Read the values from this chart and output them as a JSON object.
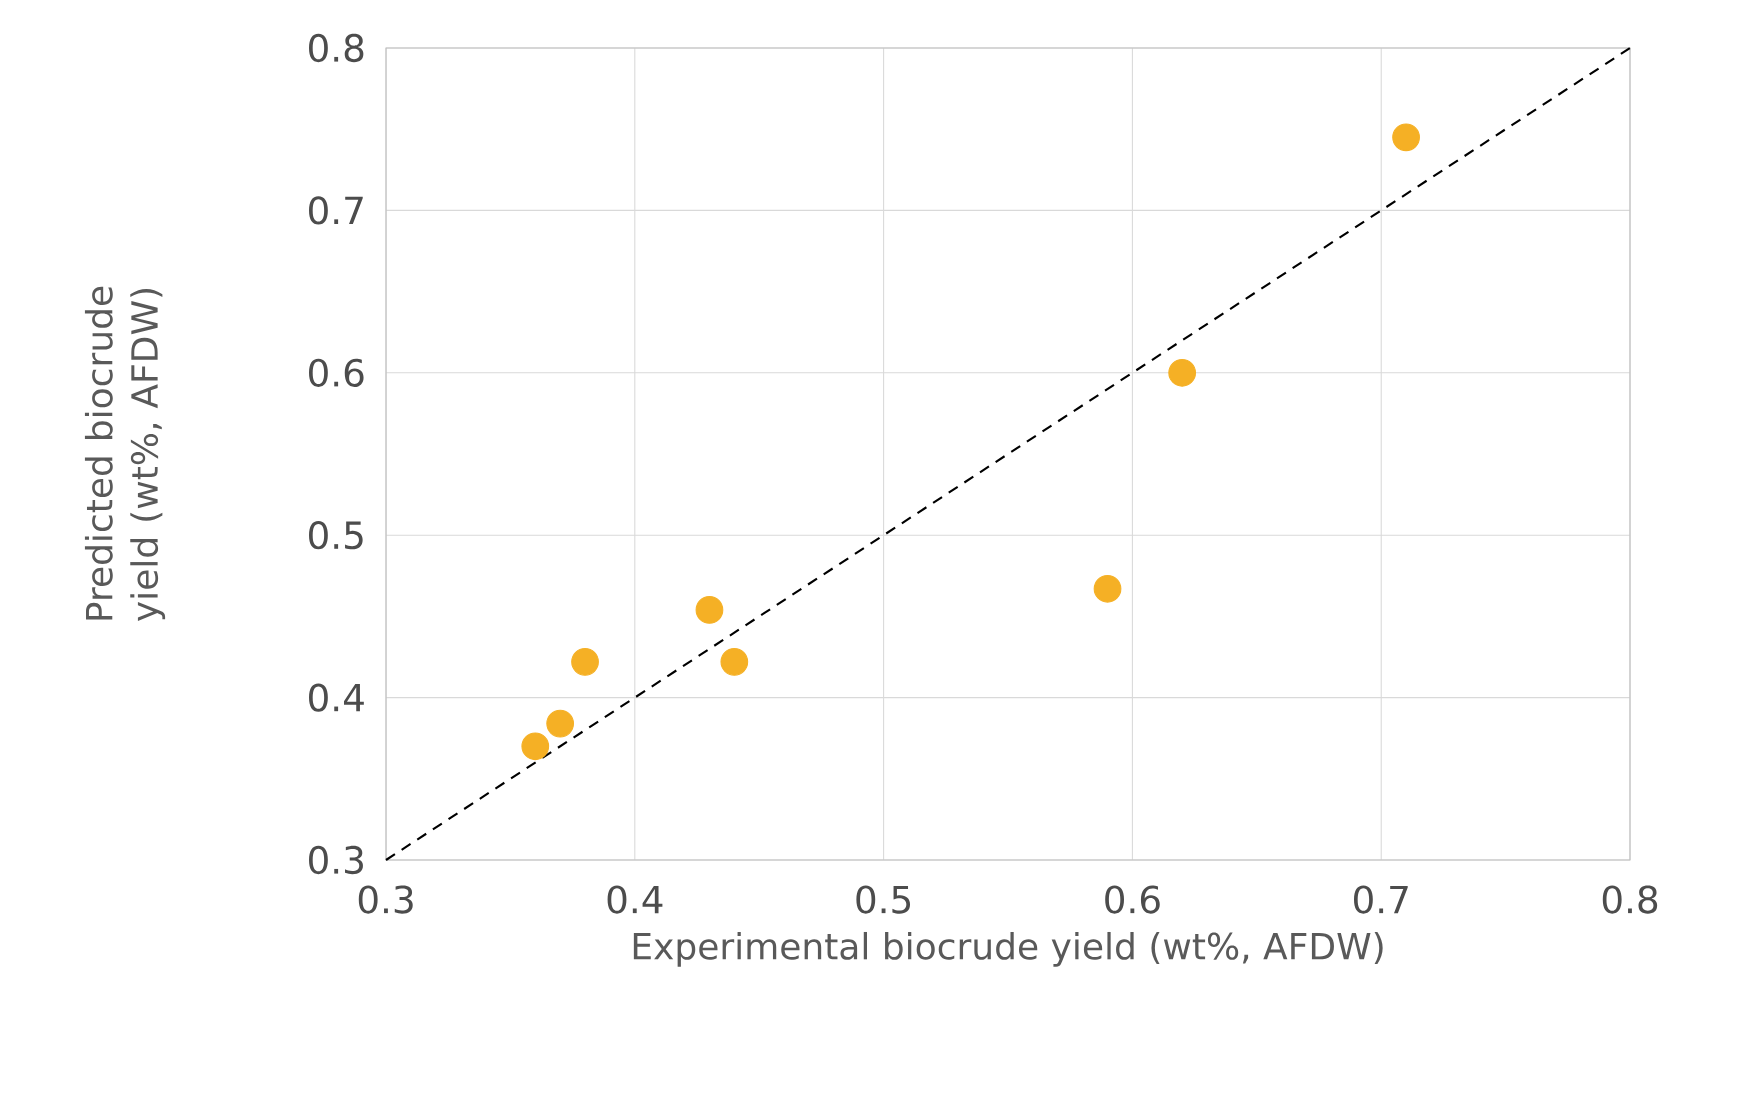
{
  "chart_data": {
    "type": "scatter",
    "xlabel": "Experimental biocrude yield (wt%, AFDW)",
    "ylabel": "Predicted biocrude yield (wt%, AFDW)",
    "xlim": [
      0.3,
      0.8
    ],
    "ylim": [
      0.3,
      0.8
    ],
    "xticks": [
      0.3,
      0.4,
      0.5,
      0.6,
      0.7,
      0.8
    ],
    "yticks": [
      0.3,
      0.4,
      0.5,
      0.6,
      0.7,
      0.8
    ],
    "grid": true,
    "series": [
      {
        "type": "line",
        "line_style": "dashed",
        "marker": "none",
        "color": "#000000",
        "x": [
          0.3,
          0.8
        ],
        "values": [
          0.3,
          0.8
        ]
      },
      {
        "marker": "circle",
        "color": "#f5b025",
        "x": [
          0.71,
          0.62,
          0.59,
          0.43,
          0.44,
          0.38,
          0.37,
          0.36
        ],
        "values": [
          0.745,
          0.6,
          0.467,
          0.454,
          0.422,
          0.422,
          0.384,
          0.37
        ]
      }
    ]
  }
}
